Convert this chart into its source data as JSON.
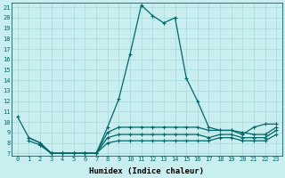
{
  "xlabel": "Humidex (Indice chaleur)",
  "background_color": "#c8eef0",
  "grid_color": "#a8d8d8",
  "line_color": "#006868",
  "xlim_min": -0.5,
  "xlim_max": 23.5,
  "ylim_min": 6.8,
  "ylim_max": 21.4,
  "yticks": [
    7,
    8,
    9,
    10,
    11,
    12,
    13,
    14,
    15,
    16,
    17,
    18,
    19,
    20,
    21
  ],
  "xticks": [
    0,
    1,
    2,
    3,
    4,
    5,
    6,
    7,
    8,
    9,
    10,
    11,
    12,
    13,
    14,
    15,
    16,
    17,
    18,
    19,
    20,
    21,
    22,
    23
  ],
  "series": [
    [
      10.5,
      8.5,
      8.0,
      7.0,
      7.0,
      7.0,
      7.0,
      7.0,
      9.5,
      12.2,
      16.5,
      21.2,
      20.2,
      19.5,
      20.0,
      14.2,
      12.0,
      9.5,
      9.2,
      9.2,
      8.8,
      9.5,
      9.8,
      9.8
    ],
    [
      null,
      8.5,
      8.0,
      7.0,
      7.0,
      7.0,
      7.0,
      7.0,
      9.0,
      9.5,
      9.5,
      9.5,
      9.5,
      9.5,
      9.5,
      9.5,
      9.5,
      9.2,
      9.2,
      9.2,
      9.0,
      8.8,
      8.8,
      9.5
    ],
    [
      null,
      8.2,
      7.8,
      7.0,
      7.0,
      7.0,
      7.0,
      7.0,
      8.5,
      8.8,
      8.8,
      8.8,
      8.8,
      8.8,
      8.8,
      8.8,
      8.8,
      8.5,
      8.8,
      8.8,
      8.5,
      8.5,
      8.5,
      9.2
    ],
    [
      null,
      null,
      7.8,
      7.0,
      7.0,
      7.0,
      7.0,
      7.0,
      8.0,
      8.2,
      8.2,
      8.2,
      8.2,
      8.2,
      8.2,
      8.2,
      8.2,
      8.2,
      8.5,
      8.5,
      8.2,
      8.2,
      8.2,
      8.8
    ]
  ]
}
